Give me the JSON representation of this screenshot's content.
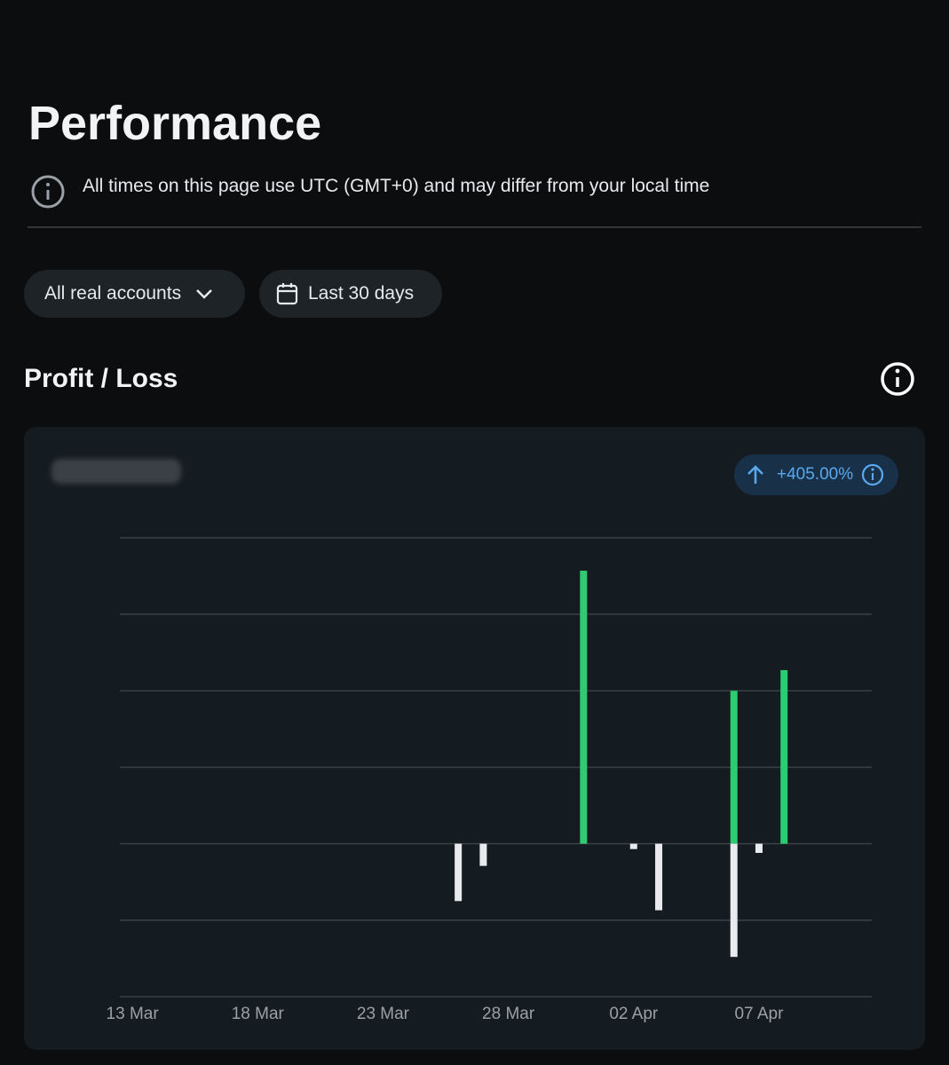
{
  "header": {
    "title": "Performance",
    "notice": "All times on this page use UTC (GMT+0) and may differ from your local time"
  },
  "filters": [
    "All real accounts",
    "Last 30 days"
  ],
  "chart_data": {
    "type": "bar",
    "title": "Profit / Loss",
    "badge": "+405.00%",
    "categories": [
      "13 Mar",
      null,
      null,
      null,
      null,
      "18 Mar",
      null,
      null,
      null,
      null,
      "23 Mar",
      null,
      null,
      null,
      null,
      "28 Mar",
      null,
      null,
      null,
      null,
      "02 Apr",
      null,
      null,
      null,
      null,
      "07 Apr",
      null,
      null,
      null,
      null
    ],
    "series": [
      {
        "color": "#2ecc71",
        "values": [
          null,
          null,
          null,
          null,
          null,
          null,
          null,
          null,
          null,
          null,
          null,
          null,
          null,
          null,
          null,
          null,
          null,
          null,
          3.57,
          null,
          null,
          null,
          null,
          null,
          2.0,
          null,
          2.27,
          null,
          null,
          null
        ]
      },
      {
        "color": "#e8eaed",
        "values": [
          null,
          null,
          null,
          null,
          null,
          null,
          null,
          null,
          null,
          null,
          null,
          null,
          null,
          -0.75,
          -0.29,
          null,
          null,
          null,
          null,
          null,
          -0.07,
          -0.87,
          null,
          null,
          -1.48,
          -0.12,
          null,
          null,
          null,
          null
        ]
      }
    ],
    "ylim": [
      -2,
      4
    ],
    "yticks": [
      -2,
      -1,
      0,
      1,
      2,
      3,
      4
    ],
    "grid": true
  }
}
